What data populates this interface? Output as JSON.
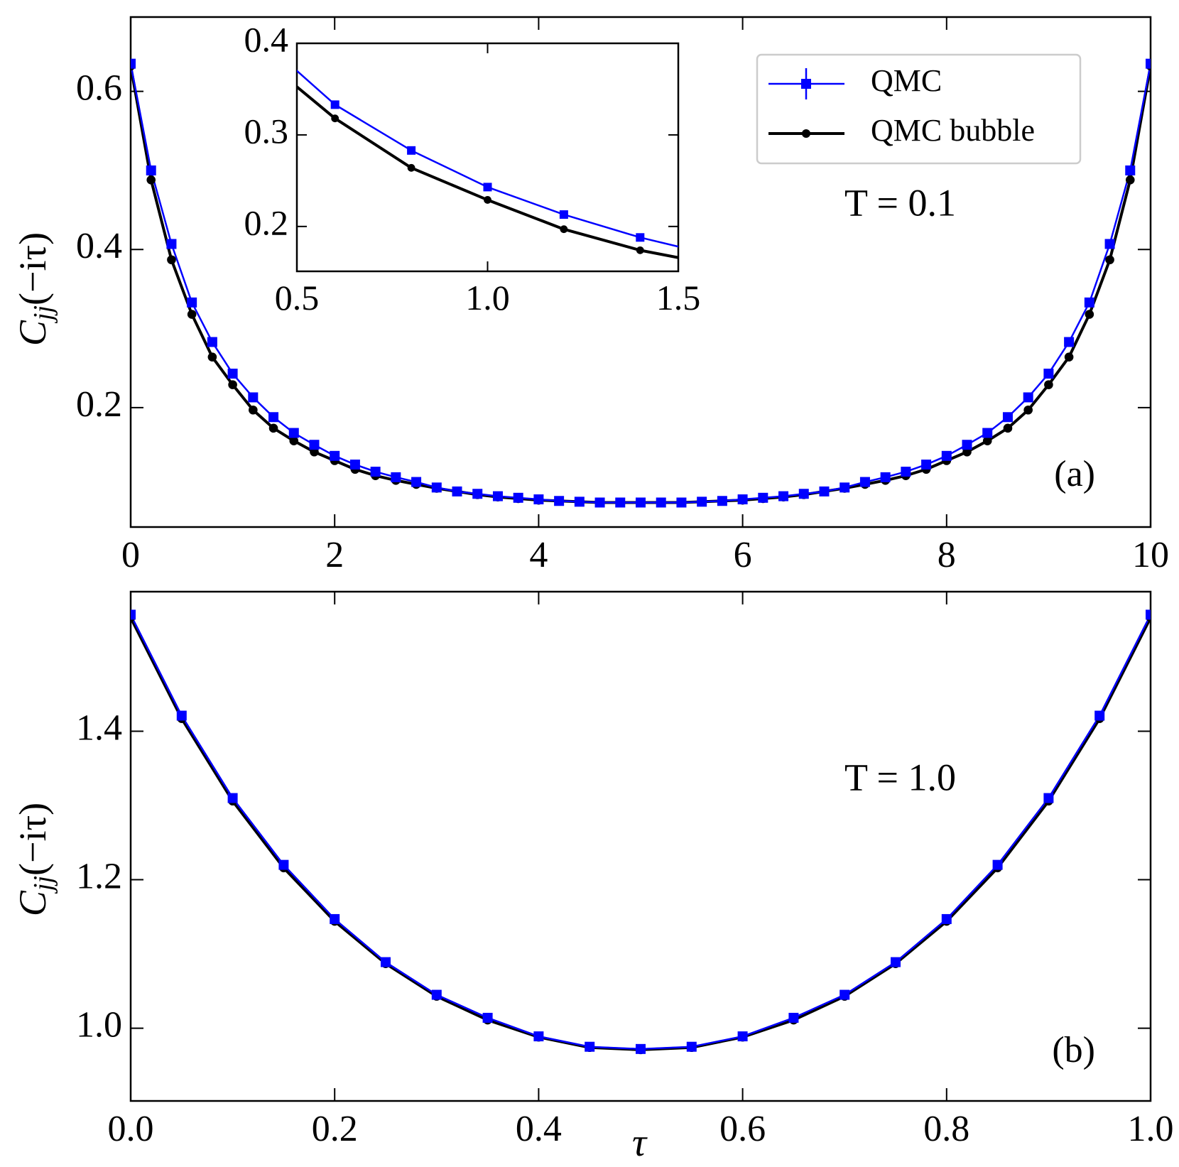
{
  "chart_data": [
    {
      "type": "line",
      "x": [
        0,
        0.2,
        0.4,
        0.6,
        0.8,
        1,
        1.2,
        1.4,
        1.6,
        1.8,
        2,
        2.2,
        2.4,
        2.6,
        2.8,
        3,
        3.2,
        3.4,
        3.6,
        3.8,
        4,
        4.2,
        4.4,
        4.6,
        4.8,
        5,
        5.2,
        5.4,
        5.6,
        5.8,
        6,
        6.2,
        6.4,
        6.6,
        6.8,
        7,
        7.2,
        7.4,
        7.6,
        7.8,
        8,
        8.2,
        8.4,
        8.6,
        8.8,
        9,
        9.2,
        9.4,
        9.6,
        9.8,
        10
      ],
      "series": [
        {
          "name": "QMC",
          "color": "#0000ff",
          "marker": "square",
          "values": [
            0.635,
            0.5,
            0.407,
            0.333,
            0.283,
            0.243,
            0.213,
            0.188,
            0.168,
            0.153,
            0.139,
            0.128,
            0.119,
            0.112,
            0.106,
            0.099,
            0.094,
            0.091,
            0.088,
            0.086,
            0.084,
            0.082,
            0.081,
            0.08,
            0.08,
            0.08,
            0.08,
            0.08,
            0.081,
            0.082,
            0.084,
            0.086,
            0.088,
            0.091,
            0.094,
            0.099,
            0.106,
            0.112,
            0.119,
            0.128,
            0.139,
            0.153,
            0.168,
            0.188,
            0.213,
            0.243,
            0.283,
            0.333,
            0.407,
            0.5,
            0.635
          ]
        },
        {
          "name": "QMC bubble",
          "color": "#000000",
          "marker": "circle",
          "values": [
            0.632,
            0.488,
            0.387,
            0.318,
            0.264,
            0.229,
            0.197,
            0.174,
            0.158,
            0.144,
            0.133,
            0.122,
            0.114,
            0.108,
            0.103,
            0.098,
            0.094,
            0.09,
            0.087,
            0.085,
            0.083,
            0.082,
            0.081,
            0.08,
            0.08,
            0.08,
            0.08,
            0.08,
            0.081,
            0.082,
            0.083,
            0.085,
            0.087,
            0.09,
            0.094,
            0.098,
            0.103,
            0.108,
            0.114,
            0.122,
            0.133,
            0.144,
            0.158,
            0.174,
            0.197,
            0.229,
            0.264,
            0.318,
            0.387,
            0.488,
            0.632
          ]
        }
      ],
      "xlim": [
        0,
        10
      ],
      "xticks": [
        0,
        2,
        4,
        6,
        8,
        10
      ],
      "ylim": [
        0.049,
        0.694
      ],
      "yticks": [
        0.2,
        0.4,
        0.6
      ],
      "ylabel": {
        "main": "C",
        "sub": "jj",
        "rest": "(−iτ)"
      },
      "annotation": "T = 0.1",
      "panel_label": "(a)",
      "legend": "upper right",
      "inset": {
        "xlim": [
          0.5,
          1.5
        ],
        "xticks": [
          0.5,
          {
            "value": 1,
            "label": "1.0"
          },
          1.5
        ],
        "ylim": [
          0.151,
          0.4
        ],
        "yticks": [
          0.2,
          0.3,
          0.4
        ]
      }
    },
    {
      "type": "line",
      "x": [
        0,
        0.05,
        0.1,
        0.15,
        0.2,
        0.25,
        0.3,
        0.35,
        0.4,
        0.45,
        0.5,
        0.55,
        0.6,
        0.65,
        0.7,
        0.75,
        0.8,
        0.85,
        0.9,
        0.95,
        1
      ],
      "series": [
        {
          "name": "QMC",
          "color": "#0000ff",
          "marker": "square",
          "values": [
            1.557,
            1.421,
            1.31,
            1.22,
            1.147,
            1.089,
            1.045,
            1.014,
            0.989,
            0.975,
            0.972,
            0.975,
            0.989,
            1.014,
            1.045,
            1.089,
            1.147,
            1.22,
            1.31,
            1.421,
            1.557
          ]
        },
        {
          "name": "QMC bubble",
          "color": "#000000",
          "marker": "circle",
          "values": [
            1.553,
            1.417,
            1.306,
            1.216,
            1.144,
            1.087,
            1.043,
            1.011,
            0.988,
            0.974,
            0.971,
            0.974,
            0.988,
            1.011,
            1.043,
            1.087,
            1.144,
            1.216,
            1.306,
            1.417,
            1.553
          ]
        }
      ],
      "xlim": [
        0,
        1
      ],
      "xticks": [
        {
          "value": 0,
          "label": "0.0"
        },
        0.2,
        0.4,
        0.6,
        0.8,
        {
          "value": 1,
          "label": "1.0"
        }
      ],
      "ylim": [
        0.902,
        1.588
      ],
      "yticks": [
        {
          "value": 1,
          "label": "1.0"
        },
        1.2,
        1.4
      ],
      "xlabel": "τ",
      "ylabel": {
        "main": "C",
        "sub": "jj",
        "rest": "(−iτ)"
      },
      "annotation": "T = 1.0",
      "panel_label": "(b)"
    }
  ]
}
